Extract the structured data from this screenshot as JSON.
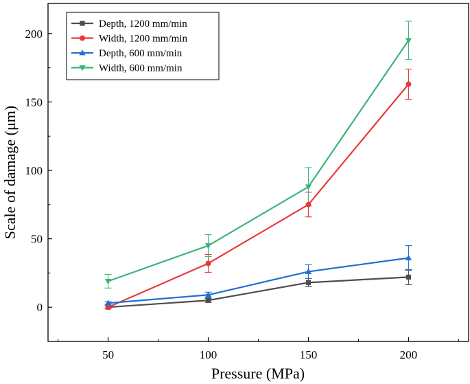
{
  "chart_data": {
    "type": "line",
    "title": "",
    "xlabel": "Pressure (MPa)",
    "ylabel": "Scale of damage (μm)",
    "xlim": [
      20,
      230
    ],
    "ylim": [
      -25,
      222
    ],
    "x": [
      50,
      100,
      150,
      200
    ],
    "xticks": [
      50,
      100,
      150,
      200
    ],
    "yticks": [
      0,
      50,
      100,
      150,
      200
    ],
    "xtick_labels": [
      "50",
      "100",
      "150",
      "200"
    ],
    "ytick_labels": [
      "0",
      "50",
      "100",
      "150",
      "200"
    ],
    "grid": false,
    "legend_position": "top-left",
    "series": [
      {
        "name": "Depth, 1200 mm/min",
        "marker": "square",
        "color": "#4d4d4d",
        "values": [
          0,
          5,
          18,
          22
        ],
        "errors": [
          1,
          1.5,
          3,
          5.5
        ]
      },
      {
        "name": "Width, 1200 mm/min",
        "marker": "circle",
        "color": "#e8393a",
        "values": [
          0,
          32,
          75,
          163
        ],
        "errors": [
          1,
          6.5,
          9,
          11
        ]
      },
      {
        "name": "Depth, 600 mm/min",
        "marker": "triangle-up",
        "color": "#1f6fd1",
        "values": [
          3,
          9,
          26,
          36
        ],
        "errors": [
          1,
          2,
          5,
          9
        ]
      },
      {
        "name": "Width, 600 mm/min",
        "marker": "triangle-down",
        "color": "#3db37a",
        "values": [
          19,
          45,
          88,
          195
        ],
        "errors": [
          5,
          8,
          14,
          14
        ]
      }
    ]
  }
}
